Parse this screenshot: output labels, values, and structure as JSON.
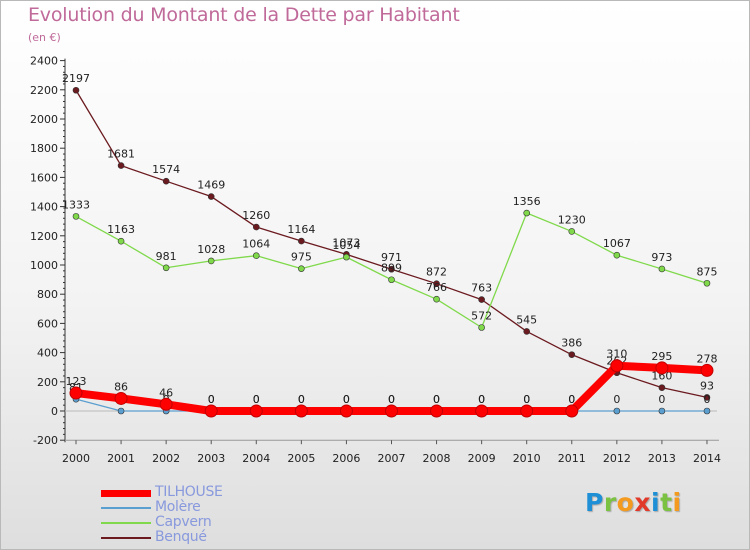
{
  "title": "Evolution du Montant de la Dette par Habitant",
  "unit": "(en €)",
  "brand": {
    "text": "Proxiti",
    "letters": [
      {
        "ch": "P",
        "color": "#1f8fd6"
      },
      {
        "ch": "r",
        "color": "#7cc242"
      },
      {
        "ch": "o",
        "color": "#f39a1f"
      },
      {
        "ch": "x",
        "color": "#e23a2a"
      },
      {
        "ch": "i",
        "color": "#1f8fd6"
      },
      {
        "ch": "t",
        "color": "#7cc242"
      },
      {
        "ch": "i",
        "color": "#f39a1f"
      }
    ]
  },
  "chart_data": {
    "type": "line",
    "title": "Evolution du Montant de la Dette par Habitant",
    "subtitle": "(en €)",
    "x": [
      "2000",
      "2001",
      "2002",
      "2003",
      "2004",
      "2005",
      "2006",
      "2007",
      "2008",
      "2009",
      "2010",
      "2011",
      "2012",
      "2013",
      "2014"
    ],
    "ylim": [
      -200,
      2400
    ],
    "yticks": [
      -200,
      0,
      200,
      400,
      600,
      800,
      1000,
      1200,
      1400,
      1600,
      1800,
      2000,
      2200,
      2400
    ],
    "grid": false,
    "legend_position": "bottom-left",
    "series": [
      {
        "name": "Benqué",
        "color": "#6b1a1f",
        "values": [
          2197,
          1681,
          1574,
          1469,
          1260,
          1164,
          1073,
          971,
          872,
          763,
          545,
          386,
          262,
          160,
          93
        ]
      },
      {
        "name": "Capvern",
        "color": "#7fd94a",
        "values": [
          1333,
          1163,
          981,
          1028,
          1064,
          975,
          1054,
          899,
          766,
          572,
          1356,
          1230,
          1067,
          973,
          875
        ]
      },
      {
        "name": "Molère",
        "color": "#5b9fd0",
        "values": [
          81,
          0,
          0,
          0,
          0,
          0,
          0,
          0,
          0,
          0,
          0,
          0,
          0,
          0,
          0
        ]
      },
      {
        "name": "TILHOUSE",
        "color": "#ff0000",
        "values": [
          123,
          86,
          46,
          0,
          0,
          0,
          0,
          0,
          0,
          0,
          0,
          0,
          310,
          295,
          278
        ]
      }
    ]
  },
  "legend": [
    {
      "name": "TILHOUSE",
      "color": "#ff0000",
      "text_color": "#8899dd"
    },
    {
      "name": "Molère",
      "color": "#5b9fd0",
      "text_color": "#8899dd"
    },
    {
      "name": "Capvern",
      "color": "#7fd94a",
      "text_color": "#8899dd"
    },
    {
      "name": "Benqué",
      "color": "#6b1a1f",
      "text_color": "#8899dd"
    }
  ]
}
